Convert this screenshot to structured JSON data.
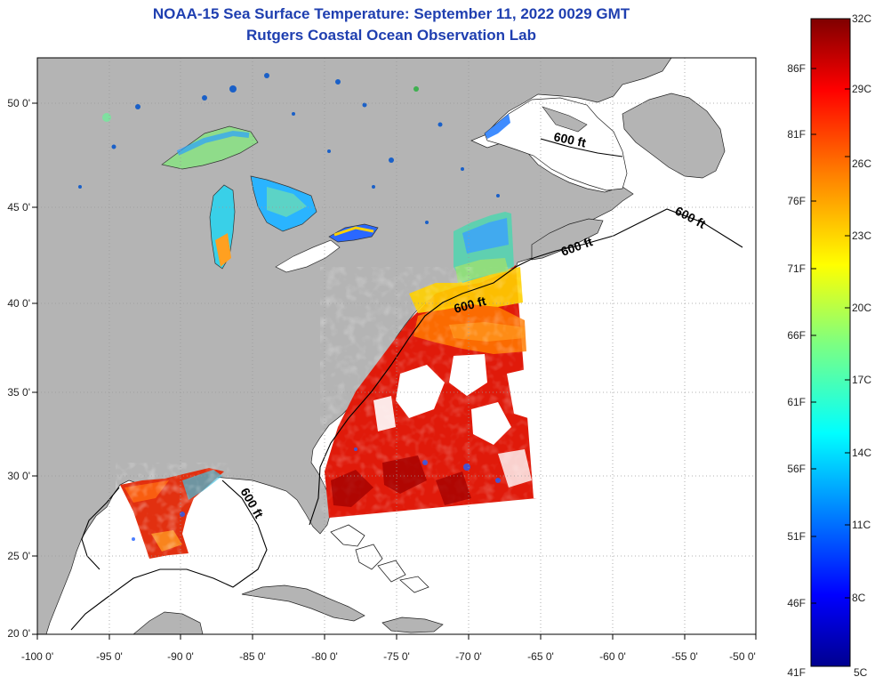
{
  "title": {
    "line1": "NOAA-15 Sea Surface Temperature:  September 11, 2022 0029 GMT",
    "line2": "Rutgers Coastal Ocean Observation Lab"
  },
  "map": {
    "lat_ticks": [
      "50 0'",
      "45 0'",
      "40 0'",
      "35 0'",
      "30 0'",
      "25 0'",
      "20 0'"
    ],
    "lon_ticks": [
      "-100 0'",
      "-95 0'",
      "-90 0'",
      "-85 0'",
      "-80 0'",
      "-75 0'",
      "-70 0'",
      "-65 0'",
      "-60 0'",
      "-55 0'",
      "-50 0'"
    ],
    "contour_label": "600 ft",
    "colors": {
      "land": "#b4b4b4",
      "ocean": "#ffffff",
      "grid": "#9a9a9a",
      "contour": "#000000"
    }
  },
  "colorbar": {
    "celsius_labels": [
      "32C",
      "29C",
      "26C",
      "23C",
      "20C",
      "17C",
      "14C",
      "11C",
      "8C",
      "5C"
    ],
    "fahrenheit_labels": [
      "86F",
      "81F",
      "76F",
      "71F",
      "66F",
      "61F",
      "56F",
      "51F",
      "46F",
      "41F"
    ],
    "colormap": [
      "#00008f",
      "#0000ff",
      "#007fff",
      "#00ffff",
      "#7fff7f",
      "#ffff00",
      "#ff7f00",
      "#ff0000",
      "#7f0000"
    ]
  }
}
